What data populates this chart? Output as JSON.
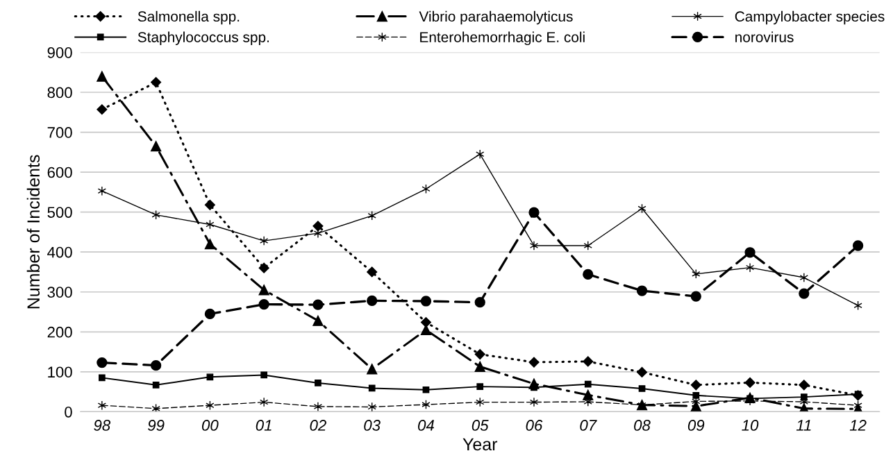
{
  "chart_data": {
    "type": "line",
    "xlabel": "Year",
    "ylabel": "Number of Incidents",
    "categories": [
      "98",
      "99",
      "00",
      "01",
      "02",
      "03",
      "04",
      "05",
      "06",
      "07",
      "08",
      "09",
      "10",
      "11",
      "12"
    ],
    "ylim": [
      0,
      900
    ],
    "yticks": [
      0,
      100,
      200,
      300,
      400,
      500,
      600,
      700,
      800,
      900
    ],
    "grid": "y",
    "legend": "top",
    "series": [
      {
        "name": "Salmonella spp.",
        "color": "#000000",
        "marker": "diamond",
        "line_style": "dotted",
        "values": [
          757,
          825,
          518,
          360,
          465,
          350,
          224,
          144,
          124,
          126,
          99,
          67,
          73,
          67,
          41
        ]
      },
      {
        "name": "Staphylococcus spp.",
        "color": "#000000",
        "marker": "square",
        "line_style": "solid",
        "values": [
          85,
          67,
          87,
          92,
          72,
          59,
          55,
          63,
          61,
          69,
          58,
          41,
          33,
          37,
          44
        ]
      },
      {
        "name": "Vibrio parahaemolyticus",
        "color": "#000000",
        "marker": "triangle",
        "line_style": "dashdot",
        "values": [
          840,
          665,
          420,
          305,
          228,
          107,
          205,
          113,
          70,
          42,
          17,
          14,
          35,
          8,
          7
        ]
      },
      {
        "name": "Enterohemorrhagic E. coli",
        "color": "#000000",
        "marker": "cross",
        "line_style": "dashed",
        "values": [
          16,
          8,
          16,
          24,
          13,
          12,
          18,
          24,
          24,
          25,
          17,
          26,
          27,
          25,
          16
        ]
      },
      {
        "name": "Campylobacter species",
        "color": "#000000",
        "marker": "cross",
        "line_style": "solid",
        "values": [
          553,
          493,
          469,
          428,
          447,
          491,
          558,
          645,
          416,
          416,
          509,
          345,
          361,
          336,
          266
        ]
      },
      {
        "name": "norovirus",
        "color": "#000000",
        "marker": "circle",
        "line_style": "dashed",
        "values": [
          123,
          116,
          245,
          269,
          268,
          278,
          277,
          274,
          499,
          344,
          303,
          289,
          399,
          296,
          416
        ]
      }
    ]
  }
}
